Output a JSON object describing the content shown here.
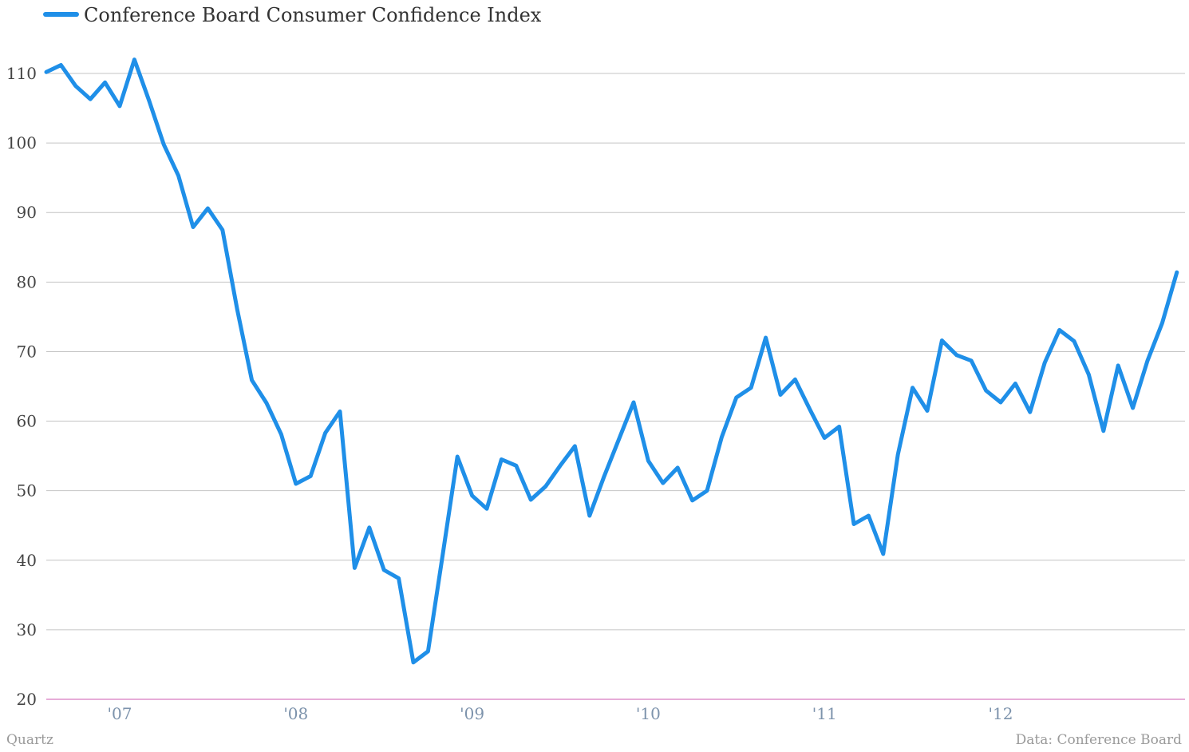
{
  "chart_data": {
    "type": "line",
    "legend_position": "top-left",
    "grid": true,
    "series": [
      {
        "name": "Conference Board Consumer Confidence Index",
        "color": "#1f8fe8",
        "values": [
          110.2,
          111.2,
          108.2,
          106.3,
          108.7,
          105.3,
          112.0,
          106.1,
          99.8,
          95.3,
          87.9,
          90.6,
          87.5,
          76.1,
          65.9,
          62.6,
          58.1,
          51.0,
          52.1,
          58.3,
          61.4,
          38.9,
          44.7,
          38.6,
          37.4,
          25.3,
          26.9,
          40.8,
          54.9,
          49.3,
          47.4,
          54.5,
          53.6,
          48.7,
          50.6,
          53.6,
          56.4,
          46.4,
          52.1,
          57.4,
          62.7,
          54.3,
          51.1,
          53.3,
          48.6,
          50.0,
          57.7,
          63.4,
          64.8,
          72.0,
          63.8,
          66.0,
          61.7,
          57.6,
          59.2,
          45.2,
          46.4,
          40.9,
          55.2,
          64.8,
          61.5,
          71.6,
          69.5,
          68.7,
          64.4,
          62.7,
          65.4,
          61.3,
          68.4,
          73.1,
          71.5,
          66.7,
          58.6,
          68.0,
          61.9,
          68.7,
          74.1,
          81.4
        ],
        "x_start": "2006-08",
        "x_interval": "month"
      }
    ],
    "x_ticks": [
      {
        "label": "'07",
        "at": "2007-01"
      },
      {
        "label": "'08",
        "at": "2008-01"
      },
      {
        "label": "'09",
        "at": "2009-01"
      },
      {
        "label": "'10",
        "at": "2010-01"
      },
      {
        "label": "'11",
        "at": "2011-01"
      },
      {
        "label": "'12",
        "at": "2012-01"
      }
    ],
    "y_ticks": [
      20,
      30,
      40,
      50,
      60,
      70,
      80,
      90,
      100,
      110
    ],
    "ylim": [
      20,
      110
    ],
    "xlim": [
      "2006-08",
      "2013-01"
    ]
  },
  "footer": {
    "credit": "Quartz",
    "source": "Data: Conference Board"
  }
}
